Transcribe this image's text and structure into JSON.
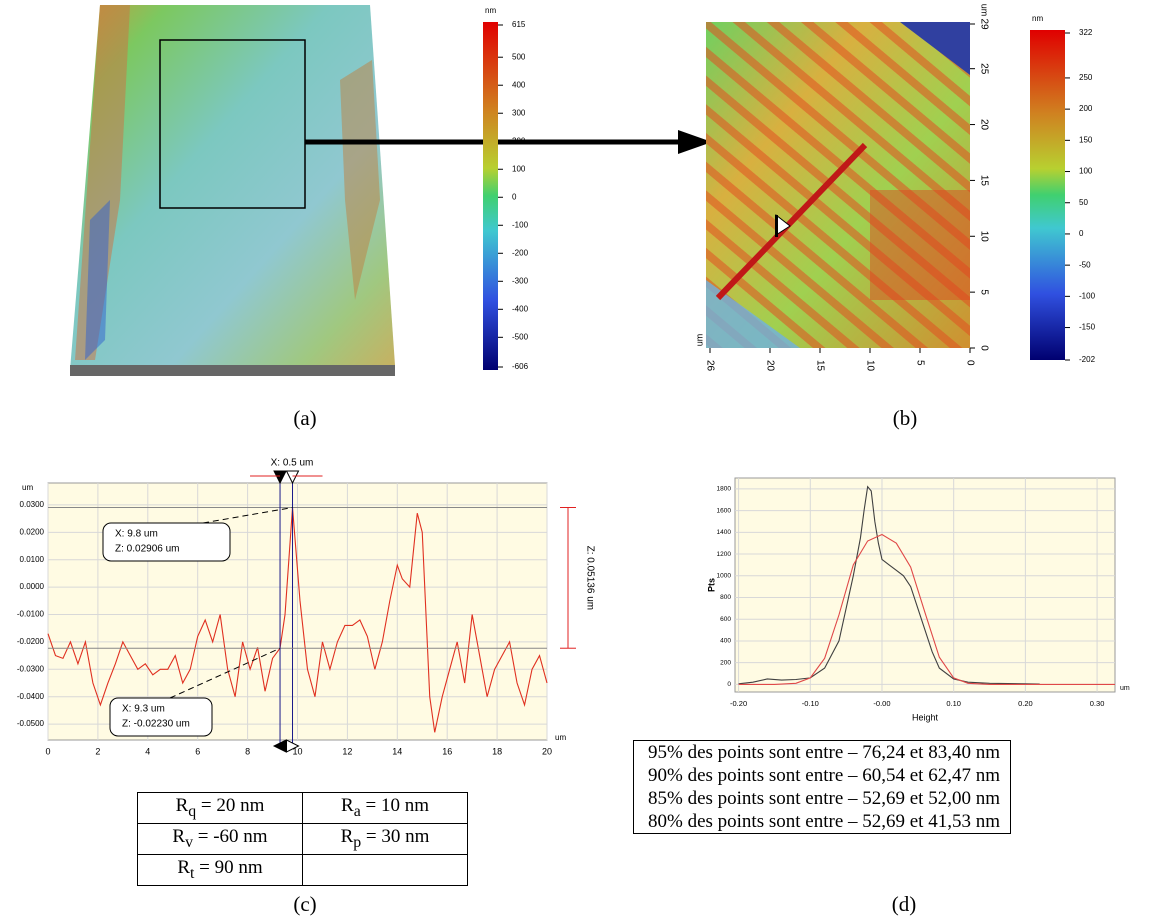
{
  "panel_a": {
    "caption": "(a)",
    "colorbar": {
      "unit": "nm",
      "lim": [
        -606,
        615
      ],
      "ticks": [
        -500,
        -400,
        -300,
        -200,
        -100,
        0,
        100,
        200,
        300,
        400,
        500
      ]
    }
  },
  "panel_b": {
    "caption": "(b)",
    "x_unit": "um",
    "y_unit": "um",
    "xlim": [
      26,
      0
    ],
    "xticks": [
      26,
      20,
      15,
      10,
      5,
      0
    ],
    "ylim": [
      0,
      29
    ],
    "yticks": [
      0,
      5,
      10,
      15,
      20,
      25,
      29
    ],
    "colorbar": {
      "unit": "nm",
      "lim": [
        -202,
        322
      ],
      "ticks": [
        -150,
        -100,
        -50,
        0,
        50,
        100,
        150,
        200,
        250
      ]
    }
  },
  "chart_data": [
    {
      "type": "line",
      "caption": "(c)",
      "y_unit": "um",
      "x_unit": "um",
      "grid": true,
      "xlim": [
        0,
        20
      ],
      "xticks": [
        0,
        2,
        4,
        6,
        8,
        10,
        12,
        14,
        16,
        18,
        20
      ],
      "ylim": [
        -0.0558,
        0.038
      ],
      "yticks": [
        {
          "value": 0.03,
          "label": "0.0300"
        },
        {
          "value": 0.02,
          "label": "0.0200"
        },
        {
          "value": 0.01,
          "label": "0.0100"
        },
        {
          "value": 0,
          "label": "0.0000"
        },
        {
          "value": -0.01,
          "label": "-0.0100"
        },
        {
          "value": -0.02,
          "label": "-0.0200"
        },
        {
          "value": -0.03,
          "label": "-0.0300"
        },
        {
          "value": -0.04,
          "label": "-0.0400"
        },
        {
          "value": -0.05,
          "label": "-0.0500"
        }
      ],
      "series": [
        {
          "color": "#e03020",
          "x": [
            0,
            0.3,
            0.6,
            0.9,
            1.2,
            1.5,
            1.8,
            2.1,
            2.4,
            2.7,
            3.0,
            3.3,
            3.6,
            3.9,
            4.2,
            4.5,
            4.8,
            5.1,
            5.4,
            5.7,
            6.0,
            6.3,
            6.6,
            6.9,
            7.2,
            7.5,
            7.8,
            8.1,
            8.4,
            8.7,
            9.0,
            9.3,
            9.5,
            9.8,
            10.1,
            10.4,
            10.7,
            11.0,
            11.3,
            11.6,
            11.9,
            12.2,
            12.5,
            12.8,
            13.1,
            13.4,
            13.7,
            14.0,
            14.2,
            14.5,
            14.8,
            15.0,
            15.3,
            15.5,
            15.8,
            16.1,
            16.4,
            16.7,
            17.0,
            17.3,
            17.6,
            17.9,
            18.2,
            18.5,
            18.8,
            19.1,
            19.4,
            19.7,
            20.0
          ],
          "values": [
            -0.017,
            -0.025,
            -0.026,
            -0.02,
            -0.028,
            -0.02,
            -0.035,
            -0.043,
            -0.035,
            -0.028,
            -0.02,
            -0.025,
            -0.03,
            -0.028,
            -0.032,
            -0.03,
            -0.03,
            -0.025,
            -0.035,
            -0.03,
            -0.018,
            -0.012,
            -0.02,
            -0.01,
            -0.03,
            -0.04,
            -0.02,
            -0.03,
            -0.022,
            -0.038,
            -0.026,
            -0.0223,
            -0.01,
            0.02906,
            -0.005,
            -0.03,
            -0.04,
            -0.02,
            -0.03,
            -0.02,
            -0.014,
            -0.014,
            -0.012,
            -0.018,
            -0.03,
            -0.02,
            -0.005,
            0.008,
            0.003,
            0.0,
            0.027,
            0.02,
            -0.04,
            -0.053,
            -0.04,
            -0.03,
            -0.02,
            -0.035,
            -0.01,
            -0.025,
            -0.04,
            -0.03,
            -0.025,
            -0.02,
            -0.035,
            -0.043,
            -0.03,
            -0.025,
            -0.035
          ]
        }
      ],
      "cursors": [
        {
          "x": 9.8,
          "z": 0.02906,
          "x_label": "X: 9.8 um",
          "z_label": "Z: 0.02906 um"
        },
        {
          "x": 9.3,
          "z": -0.0223,
          "x_label": "X: 9.3 um",
          "z_label": "Z: -0.02230 um"
        }
      ],
      "dx_label": "X: 0.5 um",
      "dz_label": "Z: 0.05136 um"
    },
    {
      "type": "line",
      "caption": "(d)",
      "ylabel": "Pts",
      "xlabel": "Height",
      "x_unit": "um",
      "grid": true,
      "xlim": [
        -0.205,
        0.325
      ],
      "xticks": [
        {
          "value": -0.2,
          "label": "-0.20"
        },
        {
          "value": -0.1,
          "label": "-0.10"
        },
        {
          "value": 0,
          "label": "-0.00"
        },
        {
          "value": 0.1,
          "label": "0.10"
        },
        {
          "value": 0.2,
          "label": "0.20"
        },
        {
          "value": 0.3,
          "label": "0.30"
        }
      ],
      "ylim": [
        -70,
        1900
      ],
      "yticks": [
        0,
        200,
        400,
        600,
        800,
        1000,
        1200,
        1400,
        1600,
        1800
      ],
      "series": [
        {
          "color": "#404040",
          "x": [
            -0.2,
            -0.18,
            -0.16,
            -0.14,
            -0.12,
            -0.1,
            -0.08,
            -0.06,
            -0.05,
            -0.04,
            -0.03,
            -0.025,
            -0.02,
            -0.015,
            -0.01,
            -0.005,
            0,
            0.01,
            0.02,
            0.03,
            0.04,
            0.05,
            0.06,
            0.07,
            0.08,
            0.1,
            0.12,
            0.15,
            0.2,
            0.22
          ],
          "values": [
            5,
            20,
            50,
            40,
            45,
            60,
            150,
            400,
            700,
            1000,
            1350,
            1600,
            1820,
            1780,
            1500,
            1300,
            1150,
            1100,
            1050,
            1000,
            900,
            700,
            500,
            300,
            150,
            50,
            20,
            10,
            5,
            3
          ]
        },
        {
          "color": "#e04848",
          "x": [
            -0.2,
            -0.15,
            -0.12,
            -0.1,
            -0.08,
            -0.06,
            -0.04,
            -0.02,
            0,
            0.02,
            0.04,
            0.06,
            0.08,
            0.1,
            0.12,
            0.15,
            0.2,
            0.325
          ],
          "values": [
            0,
            0,
            10,
            60,
            240,
            640,
            1100,
            1320,
            1380,
            1300,
            1080,
            660,
            250,
            60,
            10,
            0,
            0,
            0
          ]
        }
      ]
    }
  ],
  "table_c": {
    "rows": [
      [
        {
          "symbol": "R",
          "sub": "q",
          "text": " = 20 nm"
        },
        {
          "symbol": "R",
          "sub": "a",
          "text": " = 10 nm"
        }
      ],
      [
        {
          "symbol": "R",
          "sub": "v",
          "text": " = -60 nm"
        },
        {
          "symbol": "R",
          "sub": "p",
          "text": " = 30 nm"
        }
      ],
      [
        {
          "symbol": "R",
          "sub": "t",
          "text": " = 90 nm"
        }
      ]
    ]
  },
  "table_d": {
    "rows": [
      "95% des points sont entre – 76,24 et 83,40 nm",
      "90% des points sont entre – 60,54 et 62,47 nm",
      "85% des points sont entre – 52,69 et 52,00 nm",
      "80% des points sont entre – 52,69 et 41,53 nm"
    ]
  }
}
